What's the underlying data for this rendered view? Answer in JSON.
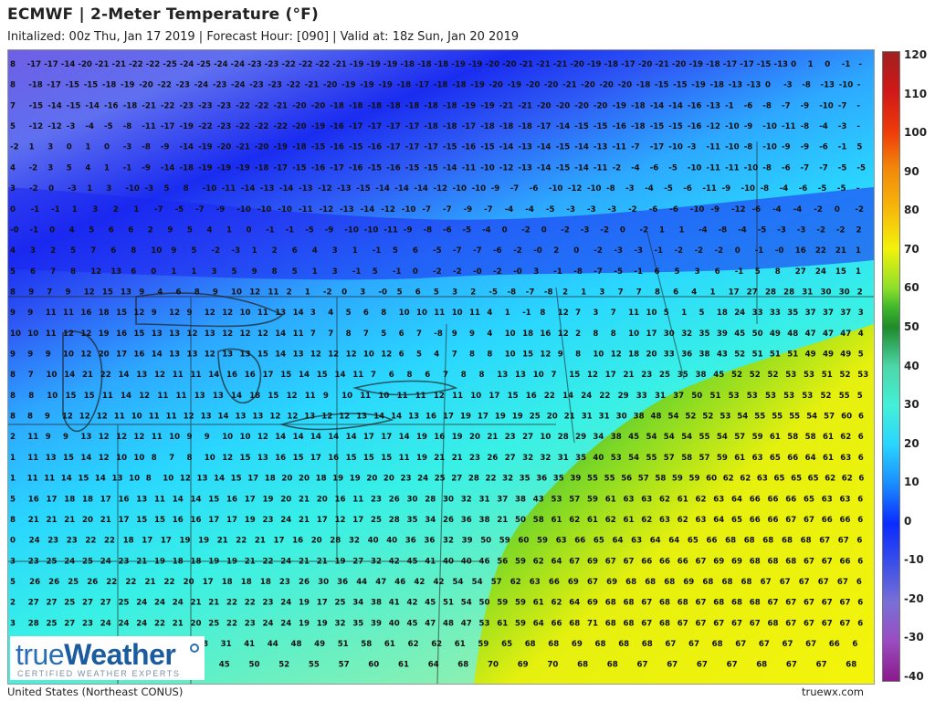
{
  "header": {
    "title": "ECMWF | 2-Meter Temperature (°F)",
    "subtitle": "Initalized: 00z Thu, Jan 17 2019 | Forecast Hour: [090] | Valid at: 18z Sun, Jan 20 2019"
  },
  "footer": {
    "region": "United States (Northeast CONUS)",
    "site": "truewx.com"
  },
  "logo": {
    "brand_part1": "true",
    "brand_part2": "Weather",
    "tagline": "CERTIFIED WEATHER EXPERTS"
  },
  "colorbar": {
    "labels": [
      "120",
      "110",
      "100",
      "90",
      "80",
      "70",
      "60",
      "50",
      "40",
      "30",
      "20",
      "10",
      "0",
      "-10",
      "-20",
      "-30",
      "-40"
    ],
    "min": -40,
    "max": 120,
    "stops": [
      {
        "value": -40,
        "color": "#8b1a8b"
      },
      {
        "value": -30,
        "color": "#9a4cc0"
      },
      {
        "value": -20,
        "color": "#7a6fd6"
      },
      {
        "value": -10,
        "color": "#3b4fe8"
      },
      {
        "value": 0,
        "color": "#0a2bff"
      },
      {
        "value": 10,
        "color": "#1a8cff"
      },
      {
        "value": 20,
        "color": "#2ad4ff"
      },
      {
        "value": 30,
        "color": "#44f0d8"
      },
      {
        "value": 40,
        "color": "#4cd6a8"
      },
      {
        "value": 50,
        "color": "#1f8a2a"
      },
      {
        "value": 55,
        "color": "#3fb82c"
      },
      {
        "value": 60,
        "color": "#8ee02a"
      },
      {
        "value": 70,
        "color": "#f2f20a"
      },
      {
        "value": 80,
        "color": "#f7b80a"
      },
      {
        "value": 90,
        "color": "#f28a0a"
      },
      {
        "value": 100,
        "color": "#ee3a0a"
      },
      {
        "value": 110,
        "color": "#d01818"
      },
      {
        "value": 120,
        "color": "#a02020"
      }
    ]
  },
  "map": {
    "temperature_rows": [
      "8 -17 -17 -14 -20 -21 -21 -22 -22 -25 -24 -25 -24 -24 -23 -23 -22 -22 -22 -21 -19 -19 -19 -18 -18 -18 -19 -19 -20 -20 -21 -21 -21 -20 -19 -18 -17 -20 -21 -20 -19 -18 -17 -17 -15 -13 0 1 0 -1 -",
      "8 -18 -17 -15 -15 -18 -19 -20 -22 -23 -24 -23 -24 -23 -23 -22 -21 -20 -19 -19 -19 -18 -17 -18 -18 -19 -20 -19 -20 -20 -21 -20 -20 -20 -18 -15 -15 -19 -18 -13 -13 0 -3 -8 -13 -10 -",
      "7 -15 -14 -15 -14 -16 -18 -21 -22 -23 -23 -23 -22 -22 -21 -20 -20 -18 -18 -18 -18 -18 -18 -18 -19 -19 -21 -21 -20 -20 -20 -20 -19 -18 -14 -14 -16 -13 -1 -6 -8 -7 -9 -10 -7 -",
      "5 -12 -12 -3 -4 -5 -8 -11 -17 -19 -22 -23 -22 -22 -22 -20 -19 -16 -17 -17 -17 -17 -18 -18 -17 -18 -18 -18 -17 -14 -15 -15 -16 -18 -15 -15 -16 -12 -10 -9 -10 -11 -8 -4 -3 -",
      "-2 1 3 0 1 0 -3 -8 -9 -14 -19 -20 -21 -20 -19 -18 -15 -16 -15 -16 -17 -17 -17 -15 -16 -15 -14 -13 -14 -15 -14 -13 -11 -7 -17 -10 -3 -11 -10 -8 -10 -9 -9 -6 -1 5",
      "4 -2 3 5 4 1 -1 -9 -14 -18 -19 -19 -19 -18 -17 -15 -16 -17 -16 -15 -16 -15 -15 -14 -11 -10 -12 -13 -14 -15 -14 -11 -2 -4 -6 -5 -10 -11 -11 -10 -8 -6 -7 -7 -5 -5",
      "3 -2 0 -3 1 3 -10 -3 5 8 -10 -11 -14 -13 -14 -13 -12 -13 -15 -14 -14 -14 -12 -10 -10 -9 -7 -6 -10 -12 -10 -8 -3 -4 -5 -6 -11 -9 -10 -8 -4 -6 -5 -5 -",
      "0 -1 -1 1 3 2 1 -7 -5 -7 -9 -10 -10 -10 -11 -12 -13 -14 -12 -10 -7 -7 -9 -7 -4 -4 -5 -3 -3 -3 -2 -6 -6 -10 -9 -12 -6 -4 -4 -2 0 -2",
      "-0 -1 0 4 5 6 6 2 9 5 4 1 0 -1 -1 -5 -9 -10 -10 -11 -9 -8 -6 -5 -4 0 -2 0 -2 -3 -2 0 -2 1 1 -4 -8 -4 -5 -3 -3 -2 -2 2",
      "4 3 2 5 7 6 8 10 9 5 -2 -3 1 2 6 4 3 1 -1 5 6 -5 -7 -7 -6 -2 -0 2 0 -2 -3 -3 -1 -2 -2 -2 0 -1 -0 16 22 21 1",
      "5 6 7 8 12 13 6 0 1 1 3 5 9 8 5 1 3 -1 5 -1 0 -2 -2 -0 -2 -0 3 -1 -8 -7 -5 -1 6 5 3 6 -1 5 8 27 24 15 1",
      "8 9 7 9 12 15 13 9 4 6 8 9 10 12 11 2 1 -2 0 3 -0 5 6 5 3 2 -5 -8 -7 -8 2 1 3 7 7 8 6 4 1 17 27 28 28 31 30 30 2",
      "9 9 11 11 16 18 15 12 9 12 9 12 12 10 11 13 14 3 4 5 6 8 10 10 11 10 11 4 1 -1 8 12 7 3 7 11 10 5 1 5 18 24 33 33 35 37 37 37 3",
      "10 10 11 12 12 19 16 15 13 13 12 13 12 12 12 14 11 7 7 8 7 5 6 7 -8 9 9 4 10 18 16 12 2 8 8 10 17 30 32 35 39 45 50 49 48 47 47 47 4",
      "9 9 9 10 12 20 17 16 14 13 13 12 13 13 15 14 13 12 12 12 10 12 6 5 4 7 8 8 10 15 12 9 8 10 12 18 20 33 36 38 43 52 51 51 51 49 49 49 5",
      "8 7 10 14 21 22 14 13 12 11 11 14 16 16 17 15 14 15 14 11 7 6 8 6 7 8 8 13 13 10 7 15 12 17 21 23 25 35 38 45 52 52 52 53 53 51 52 53",
      "8 8 10 15 15 11 14 12 11 11 13 13 14 18 15 12 11 9 10 11 10 11 11 12 11 10 17 15 16 22 14 24 22 29 33 31 37 50 51 53 53 53 53 53 52 55 5",
      "8 8 9 12 12 12 11 10 11 11 12 13 14 13 13 12 12 13 12 12 13 14 14 13 16 17 19 17 19 19 25 20 21 31 31 30 38 48 54 52 52 53 54 55 55 55 54 57 60 6",
      "2 11 9 9 13 12 12 12 11 10 9 9 10 10 12 14 14 14 14 14 17 17 14 19 16 19 20 21 23 27 10 28 29 34 38 45 54 54 54 55 54 57 59 61 58 58 61 62 6",
      "1 11 13 15 14 12 10 10 8 7 8 10 12 15 13 16 15 17 16 15 15 15 11 19 21 21 23 26 27 32 32 31 35 40 53 54 55 57 58 57 59 61 63 65 66 64 61 63 6",
      "1 11 11 14 15 14 13 10 8 10 12 13 14 15 17 18 20 20 18 19 19 20 20 23 24 25 27 28 22 32 35 36 35 39 55 55 56 57 58 59 59 60 62 62 63 65 65 65 62 62 6",
      "5 16 17 18 18 17 16 13 11 14 14 15 16 17 19 20 21 20 16 11 23 26 30 28 30 32 31 37 38 43 53 57 59 61 63 63 62 61 62 63 64 66 66 66 65 63 63 6",
      "8 21 21 21 20 21 17 15 15 16 16 17 17 19 23 24 21 17 12 17 25 28 35 34 26 36 38 21 50 58 61 62 61 62 61 62 63 62 63 64 65 66 66 67 67 66 66 6",
      "0 24 23 23 22 22 18 17 17 19 19 21 22 21 17 16 20 28 32 40 40 36 36 32 39 50 59 60 59 63 66 65 64 63 64 64 65 66 68 68 68 68 68 67 67 6",
      "3 23 25 24 25 24 23 21 19 18 18 19 19 21 22 24 21 21 19 27 32 42 45 41 40 40 46 56 59 62 64 67 69 67 67 66 66 66 67 69 69 68 68 68 67 67 66 6",
      "5 26 26 25 26 22 22 21 22 20 17 18 18 18 23 26 30 36 44 47 46 42 42 54 54 57 62 63 66 69 67 69 68 68 68 69 68 68 68 67 67 67 67 67 6",
      "2 27 27 25 27 27 25 24 24 24 21 21 22 22 23 24 19 17 25 34 38 41 42 45 51 54 50 59 59 61 62 64 69 68 68 67 68 68 67 68 68 68 67 67 67 67 67 6",
      "3 28 25 27 23 24 24 24 22 21 20 25 22 23 24 24 19 19 32 35 39 40 45 47 48 47 53 61 59 64 66 68 71 68 68 67 68 67 67 67 67 67 68 67 67 67 67 6",
      "21 17 21 20 24 21 21 20 18 31 41 44 48 49 51 58 61 62 62 61 59 65 68 68 69 68 68 68 67 67 68 67 67 67 67 66 6",
      "27 28 30 32 35 38 41 45 50 52 55 57 60 61 64 68 70 69 70 68 68 67 67 67 67 68 67 67 68"
    ]
  }
}
